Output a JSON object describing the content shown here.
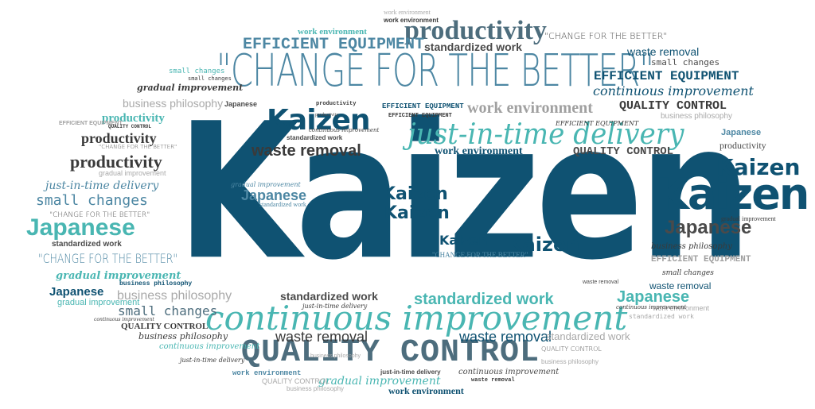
{
  "colors": {
    "navy": "#0f5272",
    "steel": "#4d87a3",
    "teal": "#49b6b2",
    "gray": "#4a4a4a",
    "lightgray": "#a9a9a9",
    "black": "#2b2b2b"
  },
  "words": [
    "Kaizen",
    "continuous improvement",
    "QUALITY CONTROL",
    "\"CHANGE FOR THE BETTER\"",
    "Kaizen",
    "just-in-time delivery",
    "Kaizen",
    "productivity",
    "Japanese",
    "waste removal",
    "EFFICIENT EQUIPMENT",
    "standardized work",
    "Kaizen",
    "Kaizen",
    "Kaizen",
    "Kaizen",
    "Kaizen",
    "Japanese",
    "Japanese",
    "Japanese",
    "Japanese",
    "Japanese",
    "work environment",
    "work environment",
    "QUALITY CONTROL",
    "QUALITY CONTROL",
    "continuous improvement",
    "business philosophy",
    "small changes",
    "small changes",
    "productivity",
    "productivity",
    "productivity",
    "just-in-time delivery",
    "\"CHANGE FOR THE BETTER\"",
    "gradual improvement",
    "waste removal",
    "waste removal",
    "waste removal",
    "standardized work",
    "standardized work",
    "EFFICIENT EQUIPMENT",
    "EFFICIENT EQUIPMENT",
    "business philosophy",
    "gradual improvement",
    "work environment",
    "standardized work",
    "productivity",
    "waste removal",
    "standardized work",
    "work environment",
    "continuous improvement",
    "\"CHANGE FOR THE BETTER\"",
    "small changes",
    "gradual improvement",
    "small changes",
    "business philosophy",
    "Japanese",
    "EFFICIENT EQUIPMENT",
    "QUALITY CONTROL",
    "work environment",
    "QUALITY CONTROL",
    "\"CHANGE FOR THE BETTER\"",
    "productivity",
    "QUALITY CONTROL",
    "business philosophy",
    "just-in-time delivery",
    "standardized work",
    "small changes",
    "gradual improvement",
    "business philosophy",
    "EFFICIENT EQUIPMENT",
    "gradual improvement",
    "work environment",
    "business philosophy",
    "continuous improvement",
    "just-in-time delivery",
    "gradual improvement",
    "waste removal",
    "EFFICIENT EQUIPMENT",
    "standardized work",
    "work environment",
    "continuous improvement",
    "business philosophy",
    "just-in-time delivery",
    "\"CHANGE FOR THE BETTER\"",
    "gradual improvement",
    "business philosophy",
    "work environment",
    "standardized work",
    "continuous improvement",
    "EFFICIENT EQUIPMENT",
    "QUALITY CONTROL",
    "\"CHANGE FOR THE BETTER\"",
    "business philosophy",
    "continuous improvement",
    "waste removal",
    "productivity",
    "small changes"
  ]
}
